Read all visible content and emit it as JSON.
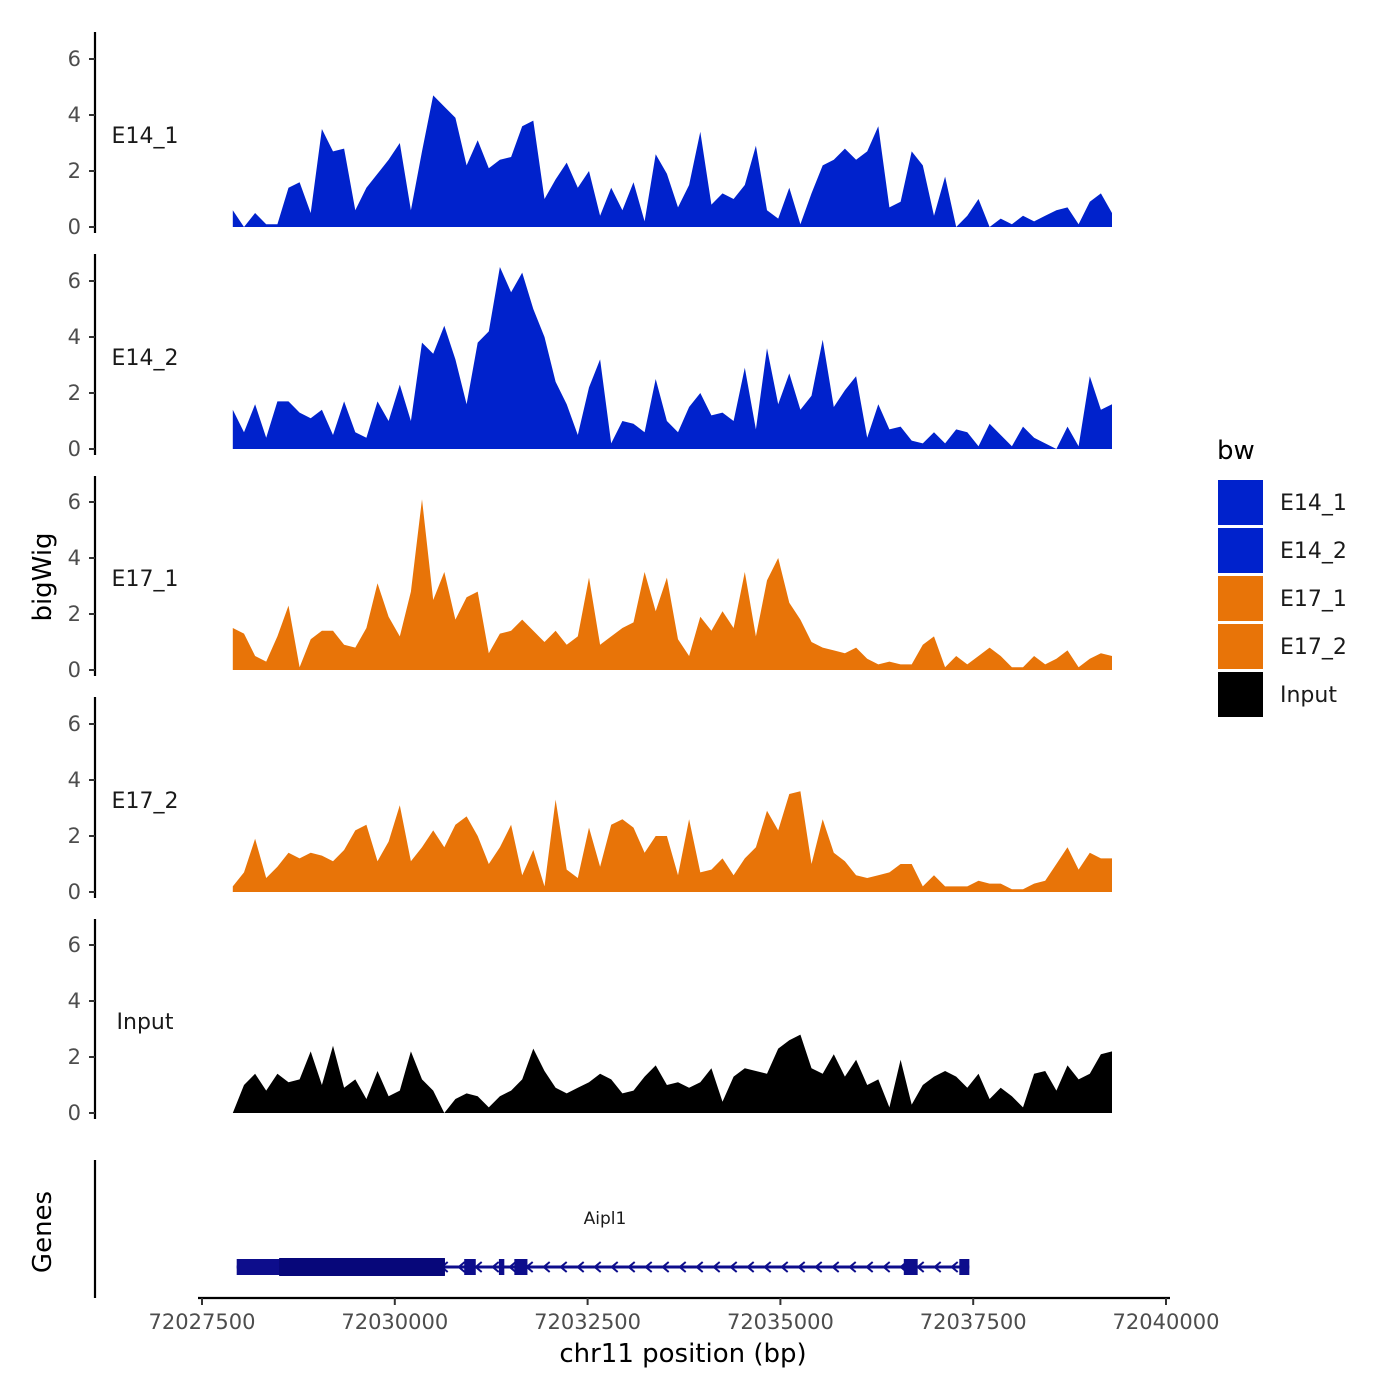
{
  "chart_data": {
    "type": "area",
    "title": "",
    "ylabel": "bigWig",
    "xlabel": "chr11 position (bp)",
    "xlim": [
      72027500,
      72040000
    ],
    "region_start": 72027900,
    "region_end": 72039300,
    "ylim": [
      0,
      7
    ],
    "yticks": [
      0,
      2,
      4,
      6
    ],
    "xticks": [
      72027500,
      72030000,
      72032500,
      72035000,
      72037500,
      72040000
    ],
    "xtick_labels": [
      "72027500",
      "72030000",
      "72032500",
      "72035000",
      "72037500",
      "72040000"
    ],
    "legend": {
      "title": "bw",
      "position": "right"
    },
    "series": [
      {
        "name": "E14_1",
        "track_label": "E14_1",
        "color": "#0022cc",
        "values": [
          0.6,
          0.0,
          0.5,
          0.1,
          0.1,
          1.4,
          1.6,
          0.5,
          3.5,
          2.7,
          2.8,
          0.6,
          1.4,
          1.9,
          2.4,
          3.0,
          0.6,
          2.7,
          4.7,
          4.3,
          3.9,
          2.2,
          3.1,
          2.1,
          2.4,
          2.5,
          3.6,
          3.8,
          1.0,
          1.7,
          2.3,
          1.4,
          2.0,
          0.4,
          1.4,
          0.6,
          1.6,
          0.2,
          2.6,
          1.9,
          0.7,
          1.5,
          3.4,
          0.8,
          1.2,
          1.0,
          1.5,
          2.9,
          0.6,
          0.3,
          1.4,
          0.1,
          1.2,
          2.2,
          2.4,
          2.8,
          2.4,
          2.7,
          3.6,
          0.7,
          0.9,
          2.7,
          2.2,
          0.4,
          1.8,
          0.0,
          0.4,
          1.0,
          0.0,
          0.3,
          0.1,
          0.4,
          0.2,
          0.4,
          0.6,
          0.7,
          0.1,
          0.9,
          1.2,
          0.5
        ]
      },
      {
        "name": "E14_2",
        "track_label": "E14_2",
        "color": "#0022cc",
        "values": [
          1.4,
          0.6,
          1.6,
          0.4,
          1.7,
          1.7,
          1.3,
          1.1,
          1.4,
          0.5,
          1.7,
          0.6,
          0.4,
          1.7,
          1.0,
          2.3,
          1.0,
          3.8,
          3.4,
          4.4,
          3.2,
          1.6,
          3.8,
          4.2,
          6.5,
          5.6,
          6.3,
          5.0,
          4.0,
          2.4,
          1.6,
          0.5,
          2.2,
          3.2,
          0.2,
          1.0,
          0.9,
          0.6,
          2.5,
          1.0,
          0.6,
          1.5,
          2.0,
          1.2,
          1.3,
          1.0,
          2.9,
          0.7,
          3.6,
          1.6,
          2.7,
          1.4,
          1.9,
          3.9,
          1.5,
          2.1,
          2.6,
          0.4,
          1.6,
          0.7,
          0.8,
          0.3,
          0.2,
          0.6,
          0.2,
          0.7,
          0.6,
          0.1,
          0.9,
          0.5,
          0.1,
          0.8,
          0.4,
          0.2,
          0.0,
          0.8,
          0.1,
          2.6,
          1.4,
          1.6
        ]
      },
      {
        "name": "E17_1",
        "track_label": "E17_1",
        "color": "#e87408",
        "values": [
          1.5,
          1.3,
          0.5,
          0.3,
          1.2,
          2.3,
          0.1,
          1.1,
          1.4,
          1.4,
          0.9,
          0.8,
          1.5,
          3.1,
          1.9,
          1.2,
          2.8,
          6.1,
          2.5,
          3.5,
          1.8,
          2.6,
          2.8,
          0.6,
          1.3,
          1.4,
          1.8,
          1.4,
          1.0,
          1.4,
          0.9,
          1.2,
          3.3,
          0.9,
          1.2,
          1.5,
          1.7,
          3.5,
          2.1,
          3.3,
          1.1,
          0.5,
          1.9,
          1.4,
          2.1,
          1.5,
          3.5,
          1.2,
          3.2,
          4.0,
          2.4,
          1.8,
          1.0,
          0.8,
          0.7,
          0.6,
          0.8,
          0.4,
          0.2,
          0.3,
          0.2,
          0.2,
          0.9,
          1.2,
          0.1,
          0.5,
          0.2,
          0.5,
          0.8,
          0.5,
          0.1,
          0.1,
          0.5,
          0.2,
          0.4,
          0.7,
          0.1,
          0.4,
          0.6,
          0.5
        ]
      },
      {
        "name": "E17_2",
        "track_label": "E17_2",
        "color": "#e87408",
        "values": [
          0.2,
          0.7,
          1.9,
          0.5,
          0.9,
          1.4,
          1.2,
          1.4,
          1.3,
          1.1,
          1.5,
          2.2,
          2.4,
          1.1,
          1.8,
          3.1,
          1.1,
          1.6,
          2.2,
          1.6,
          2.4,
          2.7,
          2.0,
          1.0,
          1.6,
          2.4,
          0.6,
          1.5,
          0.2,
          3.3,
          0.8,
          0.5,
          2.3,
          0.9,
          2.4,
          2.6,
          2.3,
          1.4,
          2.0,
          2.0,
          0.6,
          2.6,
          0.7,
          0.8,
          1.2,
          0.6,
          1.2,
          1.6,
          2.9,
          2.2,
          3.5,
          3.6,
          1.0,
          2.6,
          1.4,
          1.1,
          0.6,
          0.5,
          0.6,
          0.7,
          1.0,
          1.0,
          0.2,
          0.6,
          0.2,
          0.2,
          0.2,
          0.4,
          0.3,
          0.3,
          0.1,
          0.1,
          0.3,
          0.4,
          1.0,
          1.6,
          0.8,
          1.4,
          1.2,
          1.2
        ]
      },
      {
        "name": "Input",
        "track_label": "Input",
        "color": "#000000",
        "values": [
          0.0,
          1.0,
          1.4,
          0.8,
          1.4,
          1.1,
          1.2,
          2.2,
          1.0,
          2.4,
          0.9,
          1.2,
          0.5,
          1.5,
          0.6,
          0.8,
          2.2,
          1.2,
          0.8,
          0.0,
          0.5,
          0.7,
          0.6,
          0.2,
          0.6,
          0.8,
          1.2,
          2.3,
          1.5,
          0.9,
          0.7,
          0.9,
          1.1,
          1.4,
          1.2,
          0.7,
          0.8,
          1.3,
          1.7,
          1.0,
          1.1,
          0.9,
          1.1,
          1.6,
          0.4,
          1.3,
          1.6,
          1.5,
          1.4,
          2.3,
          2.6,
          2.8,
          1.6,
          1.4,
          2.1,
          1.3,
          1.9,
          1.0,
          1.2,
          0.2,
          1.9,
          0.3,
          1.0,
          1.3,
          1.5,
          1.3,
          0.9,
          1.4,
          0.5,
          0.9,
          0.6,
          0.2,
          1.4,
          1.5,
          0.8,
          1.7,
          1.2,
          1.4,
          2.1,
          2.2
        ]
      }
    ],
    "gene_track": {
      "label": "Genes",
      "gene_name": "Aipl1",
      "strand": "-",
      "color": "#0d0d8c",
      "start": 72027950,
      "end": 72037450,
      "exons": [
        [
          72027950,
          72030650
        ],
        [
          72030900,
          72031050
        ],
        [
          72031350,
          72031420
        ],
        [
          72031550,
          72031720
        ],
        [
          72036600,
          72036780
        ],
        [
          72037320,
          72037450
        ]
      ],
      "thick_exons": [
        [
          72028500,
          72030650
        ]
      ]
    }
  }
}
